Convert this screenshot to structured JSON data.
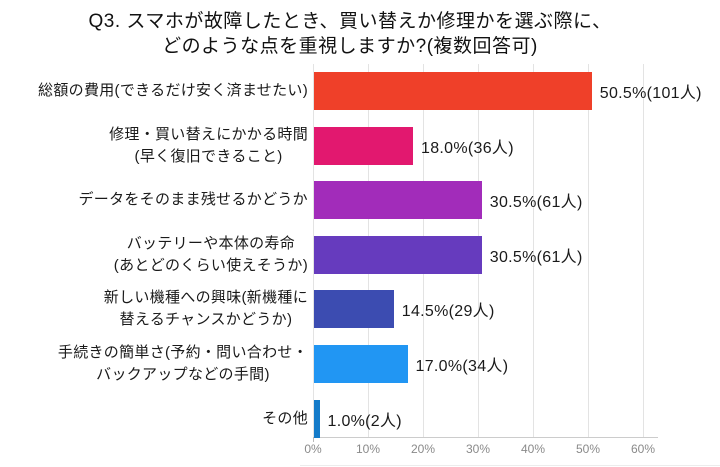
{
  "page": {
    "background": "#ffffff"
  },
  "chart_data": {
    "type": "bar",
    "orientation": "horizontal",
    "title": "Q3. スマホが故障したとき、買い替えか修理かを選ぶ際に、\nどのような点を重視しますか?(複数回答可)",
    "categories": [
      "総額の費用(できるだけ安く済ませたい)",
      "修理・買い替えにかかる時間\n(早く復旧できること)",
      "データをそのまま残せるかどうか",
      "バッテリーや本体の寿命\n(あとどのくらい使えそうか)",
      "新しい機種への興味(新機種に\n替えるチャンスかどうか)",
      "手続きの簡単さ(予約・問い合わせ・\nバックアップなどの手間)",
      "その他"
    ],
    "values": [
      50.5,
      18.0,
      30.5,
      30.5,
      14.5,
      17.0,
      1.0
    ],
    "counts": [
      101,
      36,
      61,
      61,
      29,
      34,
      2
    ],
    "value_labels": [
      "50.5%(101人)",
      "18.0%(36人)",
      "30.5%(61人)",
      "30.5%(61人)",
      "14.5%(29人)",
      "17.0%(34人)",
      "1.0%(2人)"
    ],
    "bar_colors": [
      "#EF4029",
      "#E2186F",
      "#A22CBA",
      "#663BBE",
      "#3C4CB1",
      "#2196F3",
      "#147BC9"
    ],
    "x_ticks": [
      "0%",
      "10%",
      "20%",
      "30%",
      "40%",
      "50%",
      "60%"
    ],
    "x_tick_values": [
      0,
      10,
      20,
      30,
      40,
      50,
      60
    ],
    "xlim": [
      0,
      62
    ],
    "grid": true,
    "legend": "none",
    "colors": {
      "text": "#1a1a1a",
      "axis_label": "#8a8a8a",
      "gridline": "#e3e3e3",
      "axis_line": "#cccccc"
    }
  }
}
